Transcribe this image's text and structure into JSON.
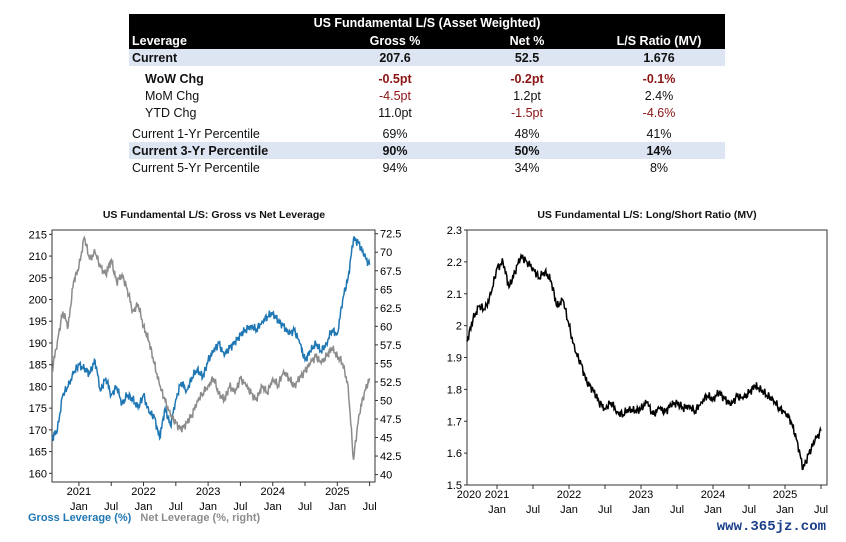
{
  "table": {
    "title": "US Fundamental L/S (Asset Weighted)",
    "headers": [
      "Leverage",
      "Gross %",
      "Net %",
      "L/S Ratio (MV)"
    ],
    "rows": [
      {
        "label": "Current",
        "values": [
          "207.6",
          "52.5",
          "1.676"
        ]
      },
      {
        "label": "WoW Chg",
        "values": [
          "-0.5pt",
          "-0.2pt",
          "-0.1%"
        ]
      },
      {
        "label": "MoM Chg",
        "values": [
          "-4.5pt",
          "1.2pt",
          "2.4%"
        ]
      },
      {
        "label": "YTD Chg",
        "values": [
          "11.0pt",
          "-1.5pt",
          "-4.6%"
        ]
      },
      {
        "label": "Current 1-Yr Percentile",
        "values": [
          "69%",
          "48%",
          "41%"
        ]
      },
      {
        "label": "Current 3-Yr Percentile",
        "values": [
          "90%",
          "50%",
          "14%"
        ]
      },
      {
        "label": "Current 5-Yr Percentile",
        "values": [
          "94%",
          "34%",
          "8%"
        ]
      }
    ]
  },
  "colors": {
    "gross": "#1f77b4",
    "net": "#8c8c8c",
    "ratio": "#000000",
    "negative": "#8b1414",
    "highlight": "#dde5f2"
  },
  "chart_data": [
    {
      "type": "line",
      "title": "US Fundamental L/S: Gross vs Net Leverage",
      "ylim_left": [
        158,
        216
      ],
      "ylim_right": [
        39,
        73
      ],
      "yticks_left": [
        "160",
        "165",
        "170",
        "175",
        "180",
        "185",
        "190",
        "195",
        "200",
        "205",
        "210",
        "215"
      ],
      "yticks_right": [
        "40",
        "42.5",
        "45",
        "47.5",
        "50",
        "52.5",
        "55",
        "57.5",
        "60",
        "62.5",
        "65",
        "67.5",
        "70",
        "72.5"
      ],
      "month_ticks": [
        "Jan",
        "Jul",
        "Jan",
        "Jul",
        "Jan",
        "Jul",
        "Jan",
        "Jul",
        "Jan",
        "Jul"
      ],
      "year_ticks": [
        "2021",
        "2022",
        "2023",
        "2024",
        "2025"
      ],
      "xlim": [
        "2020-08",
        "2025-08"
      ],
      "series": [
        {
          "name": "Gross Leverage (%)",
          "axis": "left",
          "x": [
            "2020-08",
            "2020-09",
            "2020-10",
            "2020-11",
            "2020-12",
            "2021-01",
            "2021-02",
            "2021-03",
            "2021-04",
            "2021-05",
            "2021-06",
            "2021-07",
            "2021-08",
            "2021-09",
            "2021-10",
            "2021-11",
            "2021-12",
            "2022-01",
            "2022-02",
            "2022-03",
            "2022-04",
            "2022-05",
            "2022-06",
            "2022-07",
            "2022-08",
            "2022-09",
            "2022-10",
            "2022-11",
            "2022-12",
            "2023-01",
            "2023-02",
            "2023-03",
            "2023-04",
            "2023-05",
            "2023-06",
            "2023-07",
            "2023-08",
            "2023-09",
            "2023-10",
            "2023-11",
            "2023-12",
            "2024-01",
            "2024-02",
            "2024-03",
            "2024-04",
            "2024-05",
            "2024-06",
            "2024-07",
            "2024-08",
            "2024-09",
            "2024-10",
            "2024-11",
            "2024-12",
            "2025-01",
            "2025-02",
            "2025-03",
            "2025-04",
            "2025-05",
            "2025-06",
            "2025-07"
          ],
          "values": [
            168,
            170,
            178,
            180,
            183,
            185,
            184,
            183,
            186,
            179,
            182,
            178,
            180,
            176,
            178,
            177,
            175,
            178,
            174,
            173,
            168,
            175,
            171,
            177,
            181,
            179,
            182,
            184,
            182,
            186,
            188,
            190,
            187,
            189,
            190,
            192,
            193,
            194,
            193,
            195,
            196,
            197,
            195,
            194,
            192,
            193,
            190,
            186,
            188,
            190,
            188,
            190,
            193,
            192,
            200,
            205,
            214,
            213,
            210,
            208
          ]
        },
        {
          "name": "Net Leverage (%, right)",
          "axis": "right",
          "x": [
            "2020-08",
            "2020-09",
            "2020-10",
            "2020-11",
            "2020-12",
            "2021-01",
            "2021-02",
            "2021-03",
            "2021-04",
            "2021-05",
            "2021-06",
            "2021-07",
            "2021-08",
            "2021-09",
            "2021-10",
            "2021-11",
            "2021-12",
            "2022-01",
            "2022-02",
            "2022-03",
            "2022-04",
            "2022-05",
            "2022-06",
            "2022-07",
            "2022-08",
            "2022-09",
            "2022-10",
            "2022-11",
            "2022-12",
            "2023-01",
            "2023-02",
            "2023-03",
            "2023-04",
            "2023-05",
            "2023-06",
            "2023-07",
            "2023-08",
            "2023-09",
            "2023-10",
            "2023-11",
            "2023-12",
            "2024-01",
            "2024-02",
            "2024-03",
            "2024-04",
            "2024-05",
            "2024-06",
            "2024-07",
            "2024-08",
            "2024-09",
            "2024-10",
            "2024-11",
            "2024-12",
            "2025-01",
            "2025-02",
            "2025-03",
            "2025-04",
            "2025-05",
            "2025-06",
            "2025-07"
          ],
          "values": [
            54,
            58,
            62,
            60,
            66,
            68,
            72,
            69,
            70,
            68,
            67,
            69,
            66,
            67,
            65,
            62,
            63,
            60,
            58,
            55,
            52,
            50,
            48,
            47,
            46,
            47,
            48,
            50,
            51,
            52,
            53,
            51,
            50,
            52,
            51,
            53,
            52,
            51,
            50,
            52,
            51,
            53,
            52,
            54,
            53,
            52,
            53,
            54,
            55,
            56,
            55,
            56,
            57,
            56,
            55,
            52,
            42,
            48,
            51,
            53
          ]
        }
      ]
    },
    {
      "type": "line",
      "title": "US Fundamental L/S: Long/Short Ratio (MV)",
      "ylim": [
        1.5,
        2.3
      ],
      "yticks": [
        "1.5",
        "1.6",
        "1.7",
        "1.8",
        "1.9",
        "2",
        "2.1",
        "2.2",
        "2.3"
      ],
      "month_ticks": [
        "Jan",
        "Jul",
        "Jan",
        "Jul",
        "Jan",
        "Jul",
        "Jan",
        "Jul",
        "Jan",
        "Jul"
      ],
      "year_ticks": [
        "2020",
        "2021",
        "2022",
        "2023",
        "2024",
        "2025"
      ],
      "xlim": [
        "2020-08",
        "2025-08"
      ],
      "series": [
        {
          "name": "",
          "axis": "left",
          "x": [
            "2020-08",
            "2020-09",
            "2020-10",
            "2020-11",
            "2020-12",
            "2021-01",
            "2021-02",
            "2021-03",
            "2021-04",
            "2021-05",
            "2021-06",
            "2021-07",
            "2021-08",
            "2021-09",
            "2021-10",
            "2021-11",
            "2021-12",
            "2022-01",
            "2022-02",
            "2022-03",
            "2022-04",
            "2022-05",
            "2022-06",
            "2022-07",
            "2022-08",
            "2022-09",
            "2022-10",
            "2022-11",
            "2022-12",
            "2023-01",
            "2023-02",
            "2023-03",
            "2023-04",
            "2023-05",
            "2023-06",
            "2023-07",
            "2023-08",
            "2023-09",
            "2023-10",
            "2023-11",
            "2023-12",
            "2024-01",
            "2024-02",
            "2024-03",
            "2024-04",
            "2024-05",
            "2024-06",
            "2024-07",
            "2024-08",
            "2024-09",
            "2024-10",
            "2024-11",
            "2024-12",
            "2025-01",
            "2025-02",
            "2025-03",
            "2025-04",
            "2025-05",
            "2025-06",
            "2025-07"
          ],
          "values": [
            1.95,
            2.02,
            2.06,
            2.05,
            2.1,
            2.18,
            2.2,
            2.12,
            2.17,
            2.22,
            2.2,
            2.18,
            2.15,
            2.17,
            2.14,
            2.06,
            2.08,
            2.0,
            1.92,
            1.88,
            1.82,
            1.8,
            1.76,
            1.74,
            1.76,
            1.73,
            1.72,
            1.74,
            1.73,
            1.74,
            1.76,
            1.72,
            1.74,
            1.73,
            1.75,
            1.76,
            1.74,
            1.75,
            1.73,
            1.76,
            1.78,
            1.77,
            1.79,
            1.77,
            1.75,
            1.78,
            1.77,
            1.79,
            1.81,
            1.8,
            1.78,
            1.77,
            1.74,
            1.73,
            1.7,
            1.64,
            1.55,
            1.6,
            1.64,
            1.67
          ]
        }
      ]
    }
  ],
  "legend": {
    "gross": "Gross Leverage (%)",
    "net": "Net Leverage (%, right)"
  },
  "watermark": "www.365jz.com"
}
